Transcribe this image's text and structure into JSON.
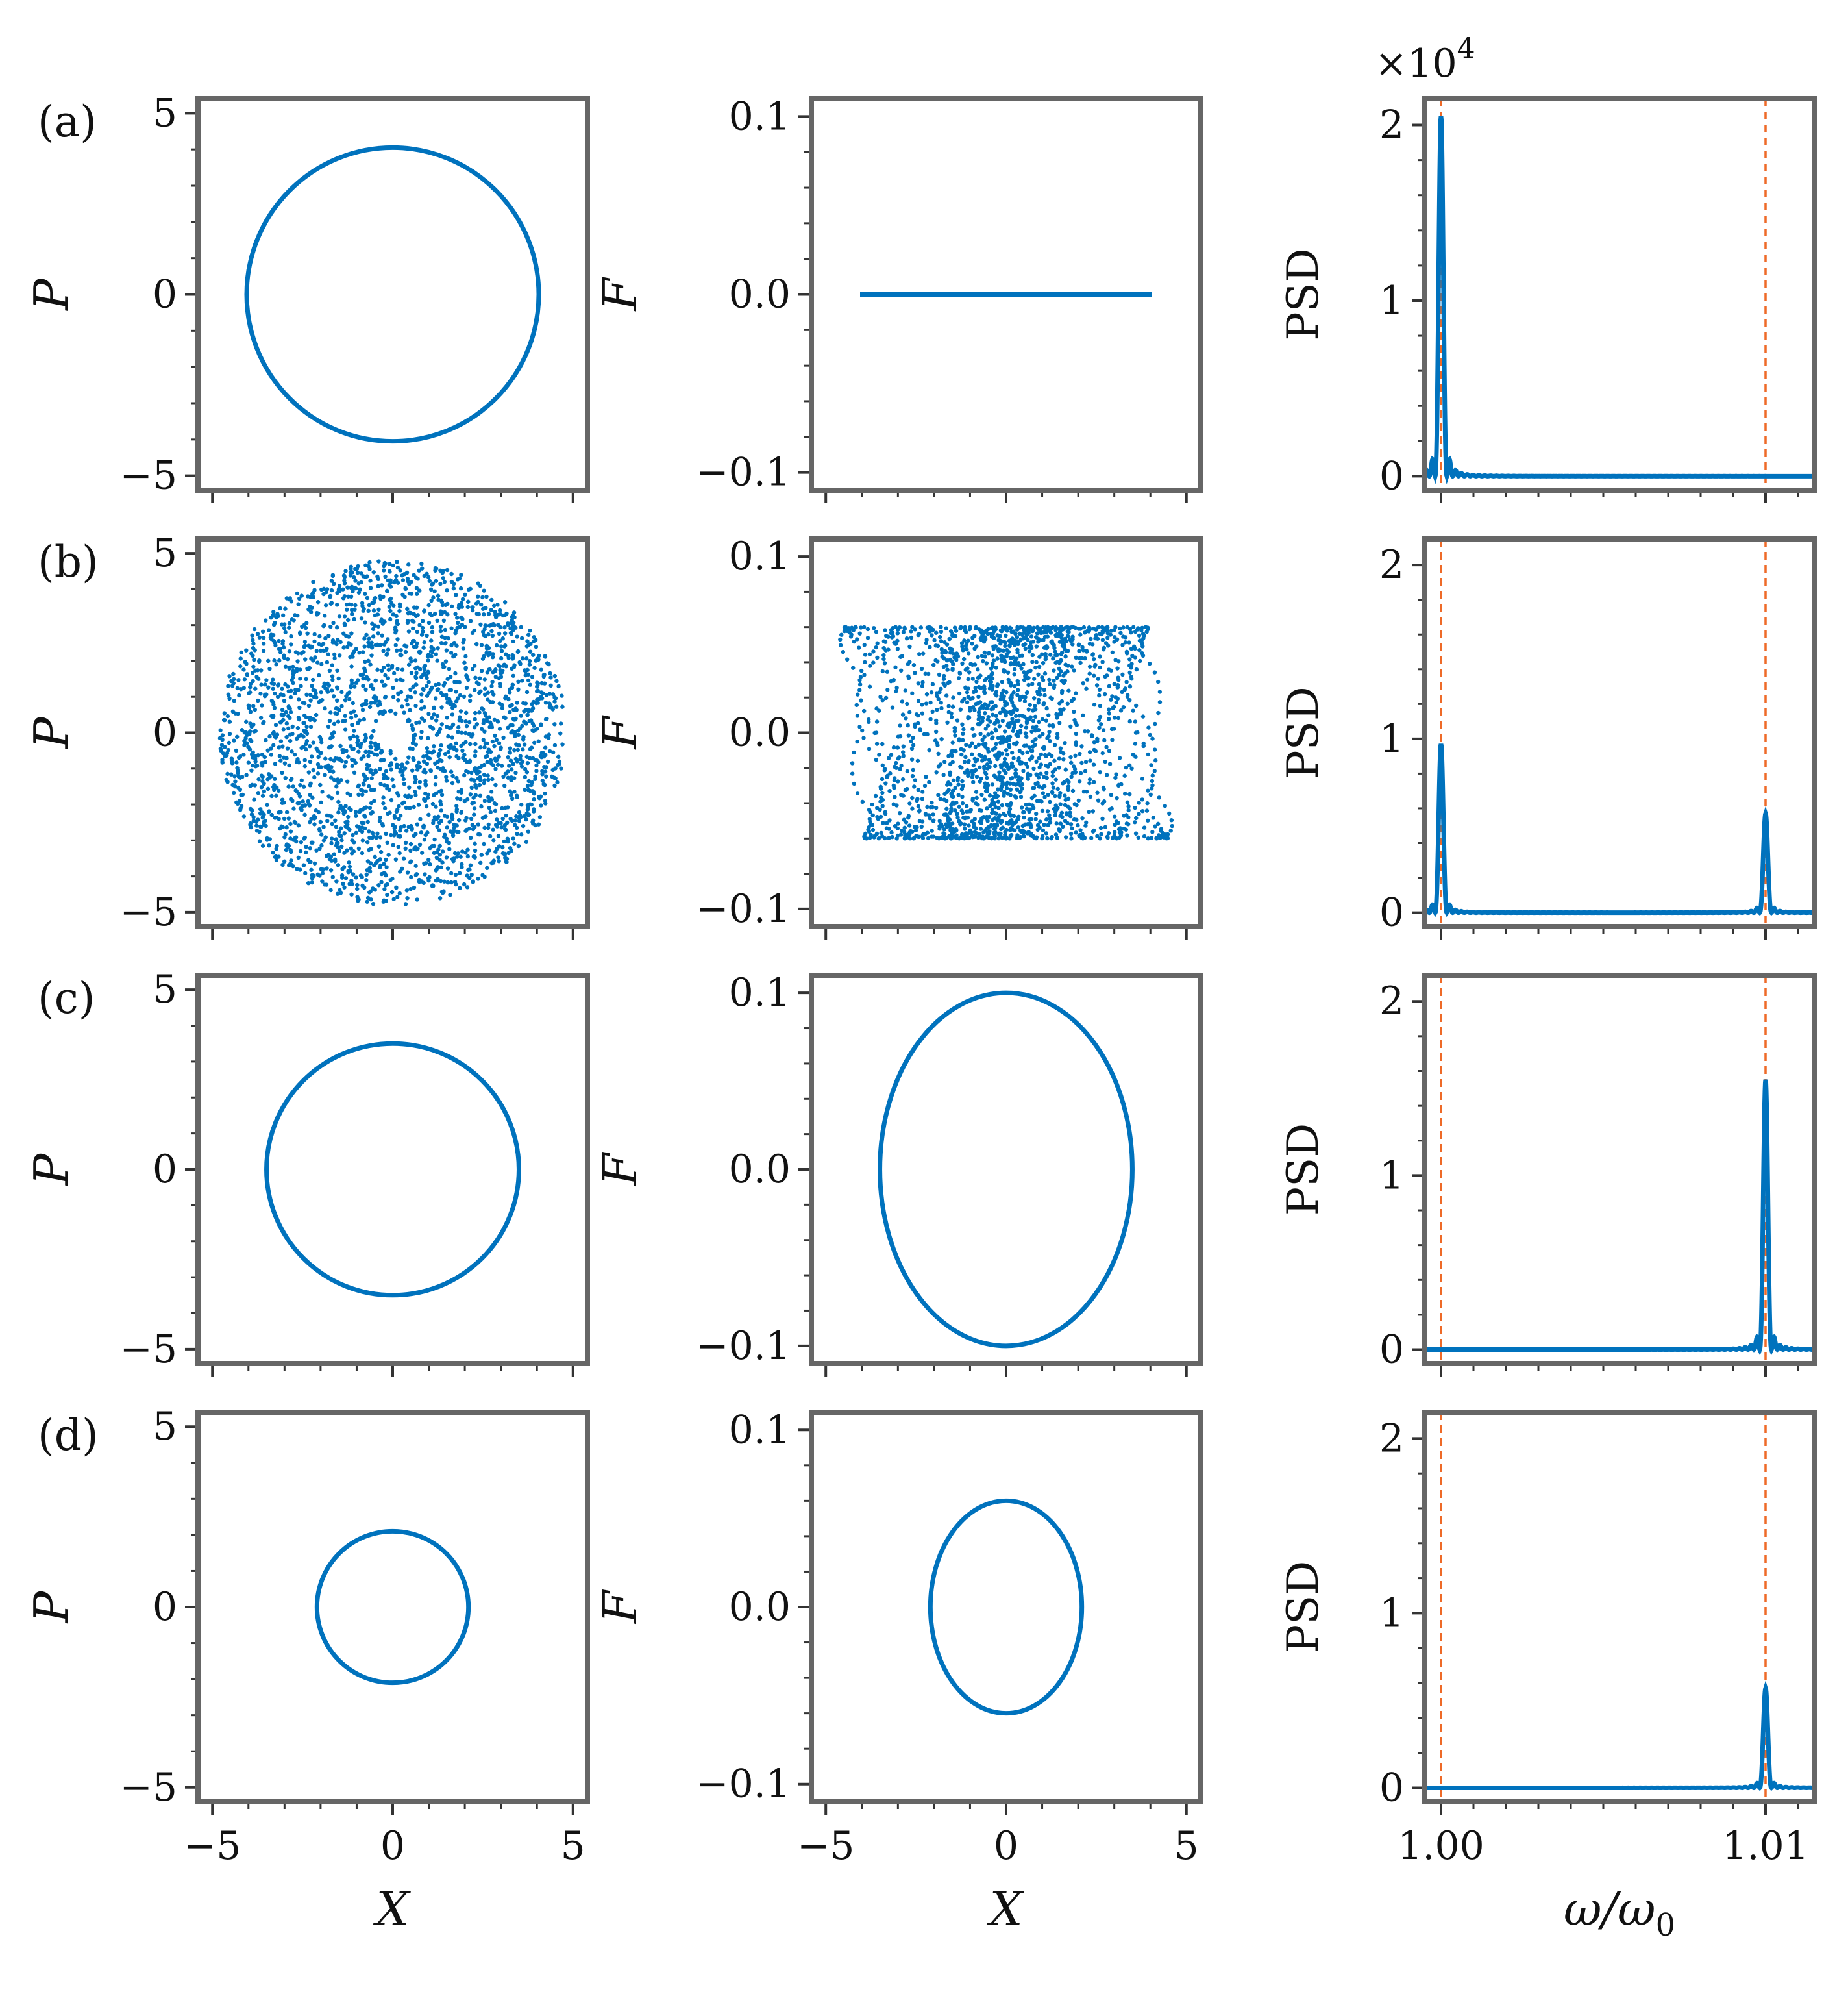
{
  "figure": {
    "colors": {
      "data": "#0072bd",
      "reference": "#ee6a28",
      "frame": "#666666"
    },
    "psd_multiplier": "×10",
    "psd_multiplier_exp": "4"
  },
  "chart_data": [
    {
      "panel": "(a)",
      "type": "line",
      "subplot": "phase",
      "xlabel": "X",
      "ylabel": "P",
      "xlim": [
        -5.4,
        5.4
      ],
      "ylim": [
        -5.4,
        5.4
      ],
      "xticks": [
        -5,
        0,
        5
      ],
      "yticks": [
        -5,
        0,
        5
      ],
      "xticklabels": [
        "−5",
        "0",
        "5"
      ],
      "yticklabels": [
        "−5",
        "0",
        "5"
      ],
      "curve": {
        "kind": "circle",
        "cx": 0,
        "cy": 0,
        "rx": 4.05,
        "ry": 4.05
      }
    },
    {
      "panel": "(a)",
      "type": "line",
      "subplot": "force",
      "xlabel": "X",
      "ylabel": "F",
      "xlim": [
        -5.4,
        5.4
      ],
      "ylim": [
        -0.11,
        0.11
      ],
      "xticks": [
        -5,
        0,
        5
      ],
      "yticks": [
        -0.1,
        0.0,
        0.1
      ],
      "xticklabels": [
        "−5",
        "0",
        "5"
      ],
      "yticklabels": [
        "−0.1",
        "0.0",
        "0.1"
      ],
      "curve": {
        "kind": "segment",
        "x": [
          -4.05,
          4.05
        ],
        "y": [
          0,
          0
        ]
      }
    },
    {
      "panel": "(a)",
      "type": "line",
      "subplot": "psd",
      "xlabel": "ω/ω0",
      "ylabel": "PSD",
      "xlim": [
        0.9995,
        1.0115
      ],
      "ylim": [
        -0.08,
        2.15
      ],
      "xticks": [
        1.0,
        1.01
      ],
      "yticks": [
        0,
        1,
        2
      ],
      "xticklabels": [
        "1.00",
        "1.01"
      ],
      "yticklabels": [
        "0",
        "1",
        "2"
      ],
      "reference_lines": [
        1.0,
        1.01
      ],
      "peaks": [
        {
          "x": 1.0,
          "height": 2.05
        }
      ]
    },
    {
      "panel": "(b)",
      "type": "scatter",
      "subplot": "phase",
      "xlabel": "X",
      "ylabel": "P",
      "xlim": [
        -5.4,
        5.4
      ],
      "ylim": [
        -5.4,
        5.4
      ],
      "xticks": [
        -5,
        0,
        5
      ],
      "yticks": [
        -5,
        0,
        5
      ],
      "xticklabels": [
        "−5",
        "0",
        "5"
      ],
      "yticklabels": [
        "−5",
        "0",
        "5"
      ],
      "cloud": {
        "kind": "annulus",
        "r_inner": 0.5,
        "r_outer": 4.8
      }
    },
    {
      "panel": "(b)",
      "type": "scatter",
      "subplot": "force",
      "xlabel": "X",
      "ylabel": "F",
      "xlim": [
        -5.4,
        5.4
      ],
      "ylim": [
        -0.11,
        0.11
      ],
      "xticks": [
        -5,
        0,
        5
      ],
      "yticks": [
        -0.1,
        0.0,
        0.1
      ],
      "xticklabels": [
        "−5",
        "0",
        "5"
      ],
      "yticklabels": [
        "−0.1",
        "0.0",
        "0.1"
      ],
      "cloud": {
        "kind": "barrel",
        "x_extent": 4.8,
        "f_extent": 0.06
      }
    },
    {
      "panel": "(b)",
      "type": "line",
      "subplot": "psd",
      "xlabel": "ω/ω0",
      "ylabel": "PSD",
      "xlim": [
        0.9995,
        1.0115
      ],
      "ylim": [
        -0.08,
        2.15
      ],
      "xticks": [
        1.0,
        1.01
      ],
      "yticks": [
        0,
        1,
        2
      ],
      "xticklabels": [
        "1.00",
        "1.01"
      ],
      "yticklabels": [
        "0",
        "1",
        "2"
      ],
      "reference_lines": [
        1.0,
        1.01
      ],
      "peaks": [
        {
          "x": 1.0,
          "height": 0.97
        },
        {
          "x": 1.01,
          "height": 0.57
        }
      ]
    },
    {
      "panel": "(c)",
      "type": "line",
      "subplot": "phase",
      "xlabel": "X",
      "ylabel": "P",
      "xlim": [
        -5.4,
        5.4
      ],
      "ylim": [
        -5.4,
        5.4
      ],
      "xticks": [
        -5,
        0,
        5
      ],
      "yticks": [
        -5,
        0,
        5
      ],
      "xticklabels": [
        "−5",
        "0",
        "5"
      ],
      "yticklabels": [
        "−5",
        "0",
        "5"
      ],
      "curve": {
        "kind": "circle",
        "cx": 0,
        "cy": 0,
        "rx": 3.5,
        "ry": 3.5
      }
    },
    {
      "panel": "(c)",
      "type": "line",
      "subplot": "force",
      "xlabel": "X",
      "ylabel": "F",
      "xlim": [
        -5.4,
        5.4
      ],
      "ylim": [
        -0.11,
        0.11
      ],
      "xticks": [
        -5,
        0,
        5
      ],
      "yticks": [
        -0.1,
        0.0,
        0.1
      ],
      "xticklabels": [
        "−5",
        "0",
        "5"
      ],
      "yticklabels": [
        "−0.1",
        "0.0",
        "0.1"
      ],
      "curve": {
        "kind": "ellipse",
        "cx": 0,
        "cy": 0,
        "rx": 3.5,
        "ry": 0.1
      }
    },
    {
      "panel": "(c)",
      "type": "line",
      "subplot": "psd",
      "xlabel": "ω/ω0",
      "ylabel": "PSD",
      "xlim": [
        0.9995,
        1.0115
      ],
      "ylim": [
        -0.08,
        2.15
      ],
      "xticks": [
        1.0,
        1.01
      ],
      "yticks": [
        0,
        1,
        2
      ],
      "xticklabels": [
        "1.00",
        "1.01"
      ],
      "yticklabels": [
        "0",
        "1",
        "2"
      ],
      "reference_lines": [
        1.0,
        1.01
      ],
      "peaks": [
        {
          "x": 1.01,
          "height": 1.55
        }
      ]
    },
    {
      "panel": "(d)",
      "type": "line",
      "subplot": "phase",
      "xlabel": "X",
      "ylabel": "P",
      "xlim": [
        -5.4,
        5.4
      ],
      "ylim": [
        -5.4,
        5.4
      ],
      "xticks": [
        -5,
        0,
        5
      ],
      "yticks": [
        -5,
        0,
        5
      ],
      "xticklabels": [
        "−5",
        "0",
        "5"
      ],
      "yticklabels": [
        "−5",
        "0",
        "5"
      ],
      "curve": {
        "kind": "circle",
        "cx": 0,
        "cy": 0,
        "rx": 2.1,
        "ry": 2.1
      }
    },
    {
      "panel": "(d)",
      "type": "line",
      "subplot": "force",
      "xlabel": "X",
      "ylabel": "F",
      "xlim": [
        -5.4,
        5.4
      ],
      "ylim": [
        -0.11,
        0.11
      ],
      "xticks": [
        -5,
        0,
        5
      ],
      "yticks": [
        -0.1,
        0.0,
        0.1
      ],
      "xticklabels": [
        "−5",
        "0",
        "5"
      ],
      "yticklabels": [
        "−0.1",
        "0.0",
        "0.1"
      ],
      "curve": {
        "kind": "ellipse",
        "cx": 0,
        "cy": 0,
        "rx": 2.1,
        "ry": 0.06
      }
    },
    {
      "panel": "(d)",
      "type": "line",
      "subplot": "psd",
      "xlabel": "ω/ω0",
      "ylabel": "PSD",
      "xlim": [
        0.9995,
        1.0115
      ],
      "ylim": [
        -0.08,
        2.15
      ],
      "xticks": [
        1.0,
        1.01
      ],
      "yticks": [
        0,
        1,
        2
      ],
      "xticklabels": [
        "1.00",
        "1.01"
      ],
      "yticklabels": [
        "0",
        "1",
        "2"
      ],
      "reference_lines": [
        1.0,
        1.01
      ],
      "peaks": [
        {
          "x": 1.01,
          "height": 0.57
        }
      ]
    }
  ]
}
